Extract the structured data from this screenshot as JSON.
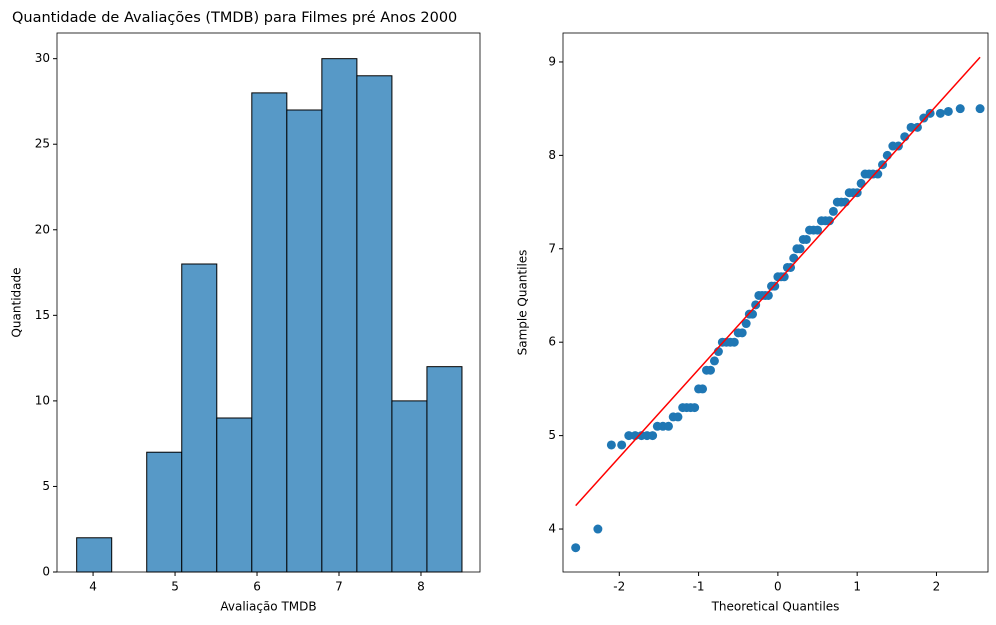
{
  "chart_data": [
    {
      "type": "histogram",
      "title": "Quantidade de Avaliações (TMDB) para Filmes pré Anos 2000",
      "xlabel": "Avaliação TMDB",
      "ylabel": "Quantidade",
      "bins": [
        3.8,
        4.2273,
        4.6545,
        5.0818,
        5.5091,
        5.9364,
        6.3636,
        6.7909,
        7.2182,
        7.6455,
        8.0727,
        8.5
      ],
      "values": [
        2,
        0,
        7,
        18,
        9,
        28,
        27,
        30,
        29,
        10,
        12
      ],
      "color": "#5799c7",
      "edgecolor": "#000000",
      "xlim": [
        3.56,
        8.72
      ],
      "ylim": [
        0,
        31.5
      ],
      "xticks": [
        4,
        5,
        6,
        7,
        8
      ],
      "yticks": [
        0,
        5,
        10,
        15,
        20,
        25,
        30
      ]
    },
    {
      "type": "scatter",
      "xlabel": "Theoretical Quantiles",
      "ylabel": "Sample Quantiles",
      "points": {
        "color": "#1f77b4",
        "x": [
          -2.55,
          -2.27,
          -2.1,
          -1.97,
          -1.88,
          -1.8,
          -1.72,
          -1.65,
          -1.58,
          -1.52,
          -1.45,
          -1.38,
          -1.32,
          -1.26,
          -1.2,
          -1.15,
          -1.1,
          -1.05,
          -1.0,
          -0.95,
          -0.9,
          -0.85,
          -0.8,
          -0.75,
          -0.7,
          -0.65,
          -0.6,
          -0.55,
          -0.5,
          -0.45,
          -0.4,
          -0.36,
          -0.32,
          -0.28,
          -0.24,
          -0.2,
          -0.16,
          -0.12,
          -0.08,
          -0.04,
          0.0,
          0.04,
          0.08,
          0.12,
          0.16,
          0.2,
          0.24,
          0.28,
          0.32,
          0.36,
          0.4,
          0.45,
          0.5,
          0.55,
          0.6,
          0.65,
          0.7,
          0.75,
          0.8,
          0.85,
          0.9,
          0.95,
          1.0,
          1.05,
          1.1,
          1.15,
          1.2,
          1.26,
          1.32,
          1.38,
          1.45,
          1.52,
          1.6,
          1.68,
          1.76,
          1.84,
          1.92,
          2.05,
          2.15,
          2.3,
          2.55
        ],
        "values": [
          3.8,
          4.0,
          4.9,
          4.9,
          5.0,
          5.0,
          5.0,
          5.0,
          5.0,
          5.1,
          5.1,
          5.1,
          5.2,
          5.2,
          5.3,
          5.3,
          5.3,
          5.3,
          5.5,
          5.5,
          5.7,
          5.7,
          5.8,
          5.9,
          6.0,
          6.0,
          6.0,
          6.0,
          6.1,
          6.1,
          6.2,
          6.3,
          6.3,
          6.4,
          6.5,
          6.5,
          6.5,
          6.5,
          6.6,
          6.6,
          6.7,
          6.7,
          6.7,
          6.8,
          6.8,
          6.9,
          7.0,
          7.0,
          7.1,
          7.1,
          7.2,
          7.2,
          7.2,
          7.3,
          7.3,
          7.3,
          7.4,
          7.5,
          7.5,
          7.5,
          7.6,
          7.6,
          7.6,
          7.7,
          7.8,
          7.8,
          7.8,
          7.8,
          7.9,
          8.0,
          8.1,
          8.1,
          8.2,
          8.3,
          8.3,
          8.4,
          8.45,
          8.45,
          8.47,
          8.5,
          8.5
        ]
      },
      "line": {
        "color": "#ff0000",
        "x": [
          -2.55,
          2.55
        ],
        "values": [
          4.25,
          9.05
        ]
      },
      "xlim": [
        -2.71,
        2.65
      ],
      "ylim": [
        3.54,
        9.31
      ],
      "xticks": [
        -2,
        -1,
        0,
        1,
        2
      ],
      "yticks": [
        4,
        5,
        6,
        7,
        8,
        9
      ]
    }
  ]
}
